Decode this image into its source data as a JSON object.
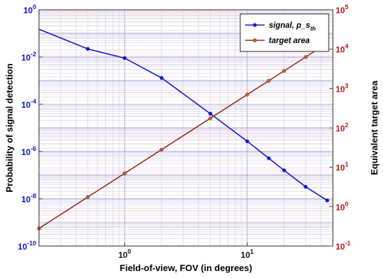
{
  "chart_data": {
    "type": "line",
    "title": "",
    "xlabel": "Field-of-view, FOV (in degrees)",
    "ylabel_left": "Probability of signal detection",
    "ylabel_right": "Equivalent target area",
    "xscale": "log",
    "yscale_left": "log",
    "yscale_right": "log",
    "xlim": [
      0.2,
      50
    ],
    "ylim_left": [
      1e-10,
      1
    ],
    "ylim_right": [
      0.1,
      100000
    ],
    "grid": true,
    "legend_position": "top-right",
    "x_ticks": [
      {
        "value": 1,
        "base": "10",
        "exp": "0"
      },
      {
        "value": 10,
        "base": "10",
        "exp": "1"
      }
    ],
    "y_left_ticks": [
      {
        "value": 1e-10,
        "base": "10",
        "exp": "-10"
      },
      {
        "value": 1e-08,
        "base": "10",
        "exp": "-8"
      },
      {
        "value": 1e-06,
        "base": "10",
        "exp": "-6"
      },
      {
        "value": 0.0001,
        "base": "10",
        "exp": "-4"
      },
      {
        "value": 0.01,
        "base": "10",
        "exp": "-2"
      },
      {
        "value": 1,
        "base": "10",
        "exp": "0"
      }
    ],
    "y_right_ticks": [
      {
        "value": 0.1,
        "base": "10",
        "exp": "-1"
      },
      {
        "value": 1,
        "base": "10",
        "exp": "0"
      },
      {
        "value": 10,
        "base": "10",
        "exp": "1"
      },
      {
        "value": 100,
        "base": "10",
        "exp": "2"
      },
      {
        "value": 1000,
        "base": "10",
        "exp": "3"
      },
      {
        "value": 10000,
        "base": "10",
        "exp": "4"
      },
      {
        "value": 100000,
        "base": "10",
        "exp": "5"
      }
    ],
    "series": [
      {
        "name": "signal, p_s",
        "name_subscript": "th",
        "axis": "left",
        "color": "#1515c9",
        "x": [
          0.2,
          0.5,
          1,
          2,
          5,
          10,
          15,
          20,
          30,
          45
        ],
        "y": [
          0.15,
          0.022,
          0.009,
          0.0013,
          4e-05,
          2.7e-06,
          5.2e-07,
          1.6e-07,
          3.2e-08,
          8.5e-09
        ]
      },
      {
        "name": "target area",
        "axis": "right",
        "color": "#9a2a1e",
        "marker_color": "#b06a32",
        "x": [
          0.2,
          0.5,
          1,
          2,
          5,
          10,
          15,
          20,
          30,
          45
        ],
        "y": [
          0.28,
          1.75,
          7,
          28,
          175,
          700,
          1575,
          2800,
          6300,
          14175
        ]
      }
    ]
  }
}
